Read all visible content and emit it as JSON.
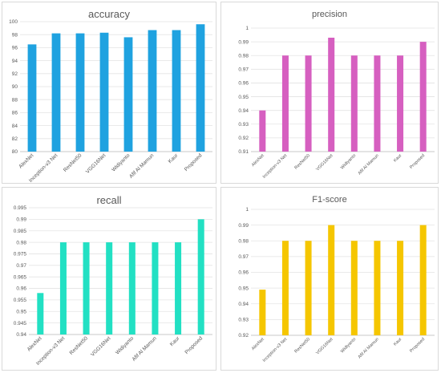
{
  "chart_data": [
    {
      "type": "bar",
      "title": "accuracy",
      "categories": [
        "AlexNet",
        "Inception-v3 Net",
        "ResNet50",
        "VGG16Net",
        "Widiyanto",
        "Afif Al Mamun",
        "Kaur",
        "Proposed"
      ],
      "series": [
        {
          "values": [
            96.5,
            98.2,
            98.2,
            98.3,
            97.6,
            98.7,
            98.7,
            99.6
          ]
        }
      ],
      "ylim": [
        80,
        100
      ],
      "yticks": [
        80,
        82,
        84,
        86,
        88,
        90,
        92,
        94,
        96,
        98,
        100
      ],
      "color": "#1fa2e0",
      "grid": true
    },
    {
      "type": "bar",
      "title": "precision",
      "categories": [
        "AlexNet",
        "Inception-v3 Net",
        "ResNet50",
        "VGG16Net",
        "Widiyanto",
        "Afif Al Mamun",
        "Kaur",
        "Proposed"
      ],
      "series": [
        {
          "values": [
            0.94,
            0.98,
            0.98,
            0.993,
            0.98,
            0.98,
            0.98,
            0.99
          ]
        }
      ],
      "ylim": [
        0.91,
        1
      ],
      "yticks": [
        0.91,
        0.92,
        0.93,
        0.94,
        0.95,
        0.96,
        0.97,
        0.98,
        0.99,
        1
      ],
      "color": "#d65fc0",
      "grid": true
    },
    {
      "type": "bar",
      "title": "recall",
      "categories": [
        "AlexNet",
        "Inception-v3 Net",
        "ResNet50",
        "VGG16Net",
        "Widiyanto",
        "Afif Al Mamun",
        "Kaur",
        "Proposed"
      ],
      "series": [
        {
          "values": [
            0.958,
            0.98,
            0.98,
            0.98,
            0.98,
            0.98,
            0.98,
            0.99
          ]
        }
      ],
      "ylim": [
        0.94,
        0.995
      ],
      "yticks": [
        0.94,
        0.945,
        0.95,
        0.955,
        0.96,
        0.965,
        0.97,
        0.975,
        0.98,
        0.985,
        0.99,
        0.995
      ],
      "color": "#22e0c3",
      "grid": true
    },
    {
      "type": "bar",
      "title": "F1-score",
      "categories": [
        "AlexNet",
        "Inception-v3 Net",
        "ResNet50",
        "VGG16Net",
        "Widiyanto",
        "Afif Al Mamun",
        "Kaur",
        "Proposed"
      ],
      "series": [
        {
          "values": [
            0.949,
            0.98,
            0.98,
            0.99,
            0.98,
            0.98,
            0.98,
            0.99
          ]
        }
      ],
      "ylim": [
        0.92,
        1
      ],
      "yticks": [
        0.92,
        0.93,
        0.94,
        0.95,
        0.96,
        0.97,
        0.98,
        0.99,
        1
      ],
      "color": "#f5c600",
      "grid": true
    }
  ]
}
